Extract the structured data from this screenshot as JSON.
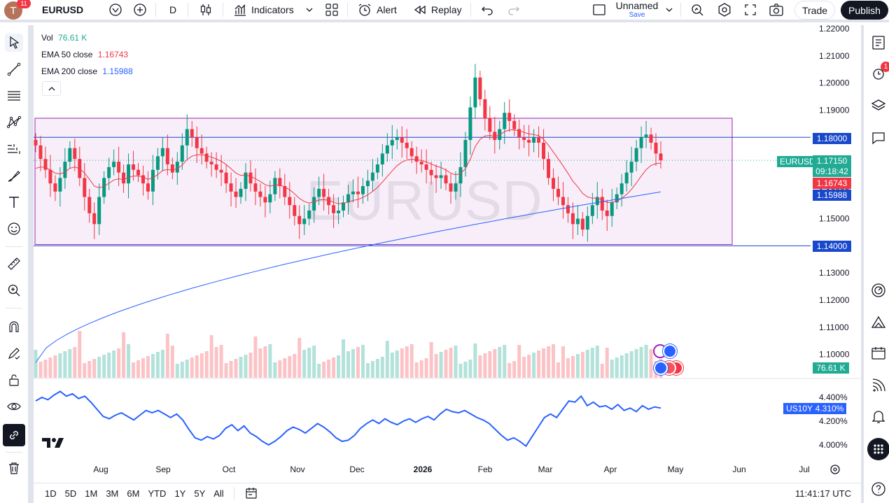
{
  "topbar": {
    "avatar_letter": "T",
    "notif_count": "11",
    "symbol": "EURUSD",
    "interval": "D",
    "indicators_label": "Indicators",
    "alert_label": "Alert",
    "replay_label": "Replay",
    "layout_name": "Unnamed",
    "layout_save": "Save",
    "trade_label": "Trade",
    "publish_label": "Publish"
  },
  "legend": {
    "vol_label": "Vol",
    "vol_value": "76.61 K",
    "ema50_label": "EMA 50 close",
    "ema50_value": "1.16743",
    "ema200_label": "EMA 200 close",
    "ema200_value": "1.15988"
  },
  "watermark": "EURUSD",
  "price_axis": {
    "ticks": [
      "1.22000",
      "1.21000",
      "1.20000",
      "1.19000",
      "1.18000",
      "1.17000",
      "1.16000",
      "1.15000",
      "1.14000",
      "1.13000",
      "1.12000",
      "1.11000",
      "1.10000"
    ],
    "tags": {
      "line_upper": "1.18000",
      "symbol": "EURUSD",
      "last_price": "1.17150",
      "countdown": "09:18:42",
      "ema50": "1.16743",
      "ema200": "1.15988",
      "line_lower": "1.14000",
      "volume": "76.61 K"
    }
  },
  "yield_axis": {
    "ticks": [
      "4.400%",
      "4.200%",
      "4.000%"
    ],
    "label": "US10Y",
    "value": "4.310%"
  },
  "time_axis": [
    "Aug",
    "Sep",
    "Oct",
    "Nov",
    "Dec",
    "2026",
    "Feb",
    "Mar",
    "Apr",
    "May",
    "Jun",
    "Jul"
  ],
  "bottombar": {
    "ranges": [
      "1D",
      "5D",
      "1M",
      "3M",
      "6M",
      "YTD",
      "1Y",
      "5Y",
      "All"
    ],
    "clock": "11:41:17 UTC"
  },
  "right_panel": {
    "alert_badge": "1"
  },
  "colors": {
    "up": "#089981",
    "down": "#f23645",
    "ema50": "#f23645",
    "ema200": "#2962ff",
    "yield": "#2962ff",
    "range_box": "#9c27b0",
    "hline": "#1848cc"
  },
  "chart_data": [
    {
      "type": "candlestick",
      "symbol": "EURUSD",
      "interval": "D",
      "ylim": [
        1.095,
        1.222
      ],
      "horizontal_lines": [
        1.18,
        1.14
      ],
      "range_box": {
        "from": "Jul",
        "to": "Apr",
        "top": 1.187,
        "bottom": 1.1405
      },
      "last_close": 1.1715,
      "ema50_last": 1.16743,
      "ema200_last": 1.15988,
      "approx_closes": [
        1.177,
        1.172,
        1.168,
        1.163,
        1.16,
        1.165,
        1.171,
        1.176,
        1.172,
        1.165,
        1.158,
        1.152,
        1.148,
        1.158,
        1.165,
        1.169,
        1.171,
        1.167,
        1.163,
        1.17,
        1.168,
        1.166,
        1.163,
        1.16,
        1.168,
        1.173,
        1.176,
        1.17,
        1.167,
        1.171,
        1.177,
        1.183,
        1.18,
        1.176,
        1.174,
        1.171,
        1.17,
        1.168,
        1.167,
        1.163,
        1.16,
        1.158,
        1.161,
        1.167,
        1.163,
        1.16,
        1.158,
        1.156,
        1.159,
        1.165,
        1.162,
        1.158,
        1.155,
        1.151,
        1.148,
        1.15,
        1.153,
        1.158,
        1.161,
        1.158,
        1.155,
        1.152,
        1.153,
        1.156,
        1.159,
        1.16,
        1.159,
        1.162,
        1.164,
        1.167,
        1.17,
        1.174,
        1.177,
        1.179,
        1.18,
        1.178,
        1.176,
        1.173,
        1.171,
        1.17,
        1.168,
        1.166,
        1.165,
        1.166,
        1.163,
        1.16,
        1.163,
        1.169,
        1.179,
        1.191,
        1.202,
        1.194,
        1.187,
        1.182,
        1.179,
        1.183,
        1.189,
        1.186,
        1.183,
        1.18,
        1.179,
        1.178,
        1.18,
        1.178,
        1.172,
        1.165,
        1.161,
        1.158,
        1.155,
        1.152,
        1.148,
        1.15,
        1.146,
        1.151,
        1.155,
        1.158,
        1.153,
        1.151,
        1.156,
        1.159,
        1.163,
        1.167,
        1.171,
        1.176,
        1.18,
        1.181,
        1.178,
        1.174,
        1.1715
      ]
    },
    {
      "type": "bar",
      "name": "Vol",
      "last_value": "76.61 K"
    },
    {
      "type": "line",
      "name": "US10Y",
      "ylim": [
        3.95,
        4.47
      ],
      "last_value": 4.31,
      "values": [
        4.37,
        4.4,
        4.38,
        4.42,
        4.45,
        4.41,
        4.43,
        4.39,
        4.41,
        4.36,
        4.3,
        4.24,
        4.22,
        4.25,
        4.27,
        4.24,
        4.21,
        4.25,
        4.29,
        4.27,
        4.29,
        4.26,
        4.23,
        4.26,
        4.21,
        4.13,
        4.06,
        4.04,
        4.07,
        4.05,
        4.08,
        4.14,
        4.17,
        4.12,
        4.16,
        4.1,
        4.07,
        4.03,
        4.0,
        4.03,
        4.07,
        4.12,
        4.15,
        4.13,
        4.1,
        4.14,
        4.18,
        4.15,
        4.11,
        4.06,
        4.03,
        4.04,
        4.08,
        4.14,
        4.18,
        4.21,
        4.18,
        4.22,
        4.19,
        4.17,
        4.2,
        4.22,
        4.19,
        4.22,
        4.24,
        4.21,
        4.26,
        4.3,
        4.28,
        4.27,
        4.29,
        4.26,
        4.23,
        4.21,
        4.18,
        4.13,
        4.08,
        4.04,
        4.06,
        4.03,
        3.99,
        4.07,
        4.15,
        4.23,
        4.26,
        4.23,
        4.3,
        4.37,
        4.36,
        4.41,
        4.33,
        4.36,
        4.32,
        4.33,
        4.3,
        4.34,
        4.29,
        4.31,
        4.28,
        4.33,
        4.3,
        4.32,
        4.31
      ]
    }
  ]
}
